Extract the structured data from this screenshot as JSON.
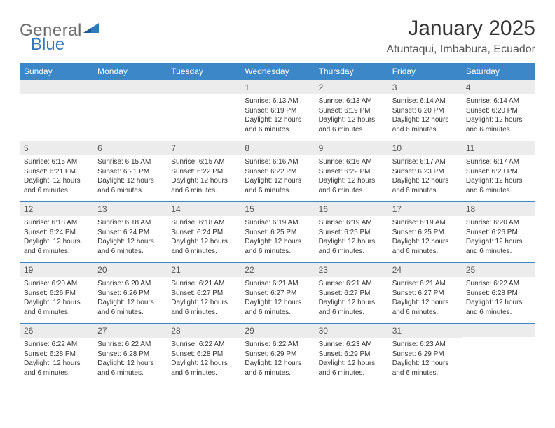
{
  "brand": {
    "text1": "General",
    "text2": "Blue"
  },
  "title": "January 2025",
  "subtitle": "Atuntaqui, Imbabura, Ecuador",
  "colors": {
    "header_bg": "#3b87c8",
    "header_text": "#ffffff",
    "daynum_bg": "#ececec",
    "rule": "#3b87c8",
    "logo_gray": "#6b6b6b",
    "logo_blue": "#2f79bf"
  },
  "day_names": [
    "Sunday",
    "Monday",
    "Tuesday",
    "Wednesday",
    "Thursday",
    "Friday",
    "Saturday"
  ],
  "labels": {
    "sunrise": "Sunrise:",
    "sunset": "Sunset:",
    "daylight": "Daylight:"
  },
  "weeks": [
    [
      null,
      null,
      null,
      {
        "n": "1",
        "sunrise": "6:13 AM",
        "sunset": "6:19 PM",
        "daylight": "12 hours and 6 minutes."
      },
      {
        "n": "2",
        "sunrise": "6:13 AM",
        "sunset": "6:19 PM",
        "daylight": "12 hours and 6 minutes."
      },
      {
        "n": "3",
        "sunrise": "6:14 AM",
        "sunset": "6:20 PM",
        "daylight": "12 hours and 6 minutes."
      },
      {
        "n": "4",
        "sunrise": "6:14 AM",
        "sunset": "6:20 PM",
        "daylight": "12 hours and 6 minutes."
      }
    ],
    [
      {
        "n": "5",
        "sunrise": "6:15 AM",
        "sunset": "6:21 PM",
        "daylight": "12 hours and 6 minutes."
      },
      {
        "n": "6",
        "sunrise": "6:15 AM",
        "sunset": "6:21 PM",
        "daylight": "12 hours and 6 minutes."
      },
      {
        "n": "7",
        "sunrise": "6:15 AM",
        "sunset": "6:22 PM",
        "daylight": "12 hours and 6 minutes."
      },
      {
        "n": "8",
        "sunrise": "6:16 AM",
        "sunset": "6:22 PM",
        "daylight": "12 hours and 6 minutes."
      },
      {
        "n": "9",
        "sunrise": "6:16 AM",
        "sunset": "6:22 PM",
        "daylight": "12 hours and 6 minutes."
      },
      {
        "n": "10",
        "sunrise": "6:17 AM",
        "sunset": "6:23 PM",
        "daylight": "12 hours and 6 minutes."
      },
      {
        "n": "11",
        "sunrise": "6:17 AM",
        "sunset": "6:23 PM",
        "daylight": "12 hours and 6 minutes."
      }
    ],
    [
      {
        "n": "12",
        "sunrise": "6:18 AM",
        "sunset": "6:24 PM",
        "daylight": "12 hours and 6 minutes."
      },
      {
        "n": "13",
        "sunrise": "6:18 AM",
        "sunset": "6:24 PM",
        "daylight": "12 hours and 6 minutes."
      },
      {
        "n": "14",
        "sunrise": "6:18 AM",
        "sunset": "6:24 PM",
        "daylight": "12 hours and 6 minutes."
      },
      {
        "n": "15",
        "sunrise": "6:19 AM",
        "sunset": "6:25 PM",
        "daylight": "12 hours and 6 minutes."
      },
      {
        "n": "16",
        "sunrise": "6:19 AM",
        "sunset": "6:25 PM",
        "daylight": "12 hours and 6 minutes."
      },
      {
        "n": "17",
        "sunrise": "6:19 AM",
        "sunset": "6:25 PM",
        "daylight": "12 hours and 6 minutes."
      },
      {
        "n": "18",
        "sunrise": "6:20 AM",
        "sunset": "6:26 PM",
        "daylight": "12 hours and 6 minutes."
      }
    ],
    [
      {
        "n": "19",
        "sunrise": "6:20 AM",
        "sunset": "6:26 PM",
        "daylight": "12 hours and 6 minutes."
      },
      {
        "n": "20",
        "sunrise": "6:20 AM",
        "sunset": "6:26 PM",
        "daylight": "12 hours and 6 minutes."
      },
      {
        "n": "21",
        "sunrise": "6:21 AM",
        "sunset": "6:27 PM",
        "daylight": "12 hours and 6 minutes."
      },
      {
        "n": "22",
        "sunrise": "6:21 AM",
        "sunset": "6:27 PM",
        "daylight": "12 hours and 6 minutes."
      },
      {
        "n": "23",
        "sunrise": "6:21 AM",
        "sunset": "6:27 PM",
        "daylight": "12 hours and 6 minutes."
      },
      {
        "n": "24",
        "sunrise": "6:21 AM",
        "sunset": "6:27 PM",
        "daylight": "12 hours and 6 minutes."
      },
      {
        "n": "25",
        "sunrise": "6:22 AM",
        "sunset": "6:28 PM",
        "daylight": "12 hours and 6 minutes."
      }
    ],
    [
      {
        "n": "26",
        "sunrise": "6:22 AM",
        "sunset": "6:28 PM",
        "daylight": "12 hours and 6 minutes."
      },
      {
        "n": "27",
        "sunrise": "6:22 AM",
        "sunset": "6:28 PM",
        "daylight": "12 hours and 6 minutes."
      },
      {
        "n": "28",
        "sunrise": "6:22 AM",
        "sunset": "6:28 PM",
        "daylight": "12 hours and 6 minutes."
      },
      {
        "n": "29",
        "sunrise": "6:22 AM",
        "sunset": "6:29 PM",
        "daylight": "12 hours and 6 minutes."
      },
      {
        "n": "30",
        "sunrise": "6:23 AM",
        "sunset": "6:29 PM",
        "daylight": "12 hours and 6 minutes."
      },
      {
        "n": "31",
        "sunrise": "6:23 AM",
        "sunset": "6:29 PM",
        "daylight": "12 hours and 6 minutes."
      },
      null
    ]
  ]
}
